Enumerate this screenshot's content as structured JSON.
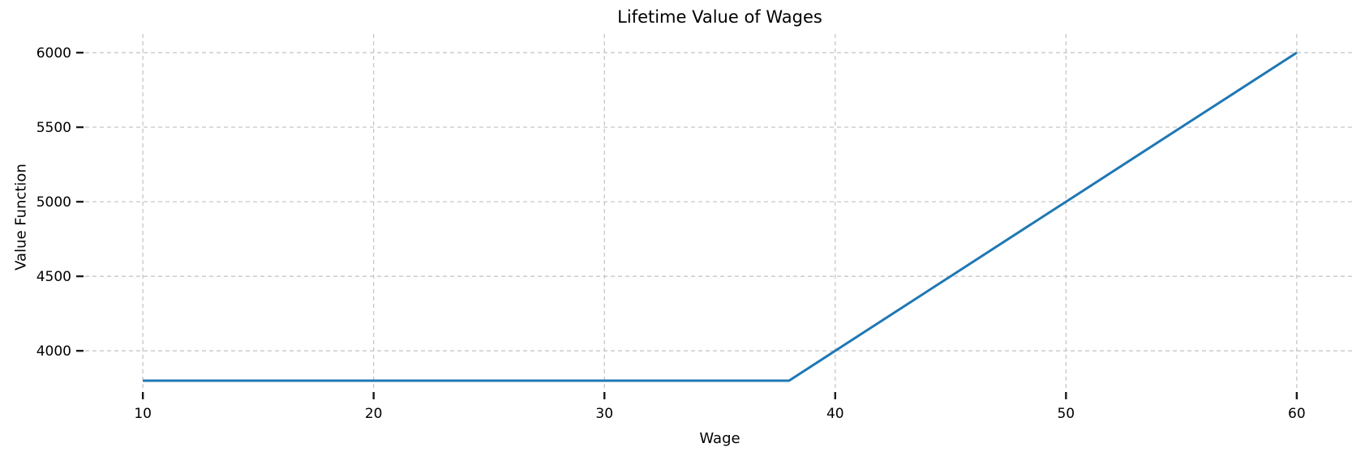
{
  "chart_data": {
    "type": "line",
    "title": "Lifetime Value of Wages",
    "xlabel": "Wage",
    "ylabel": "Value Function",
    "x_ticks": [
      10,
      20,
      30,
      40,
      50,
      60
    ],
    "y_ticks": [
      4000,
      4500,
      5000,
      5500,
      6000
    ],
    "xlim": [
      7.5,
      62.5
    ],
    "ylim": [
      3740,
      6125
    ],
    "grid": true,
    "grid_linestyle": "dashed",
    "legend_position": "none",
    "line_color": "#1f77b4",
    "grid_color": "#c2c2c2",
    "tick_color": "#1a1a1a",
    "series": [
      {
        "name": "Value Function",
        "x": [
          10,
          15,
          20,
          25,
          30,
          35,
          38,
          40,
          45,
          50,
          55,
          60
        ],
        "y": [
          3800,
          3800,
          3800,
          3800,
          3800,
          3800,
          3800,
          4000,
          4500,
          5000,
          5500,
          6000
        ]
      }
    ]
  }
}
